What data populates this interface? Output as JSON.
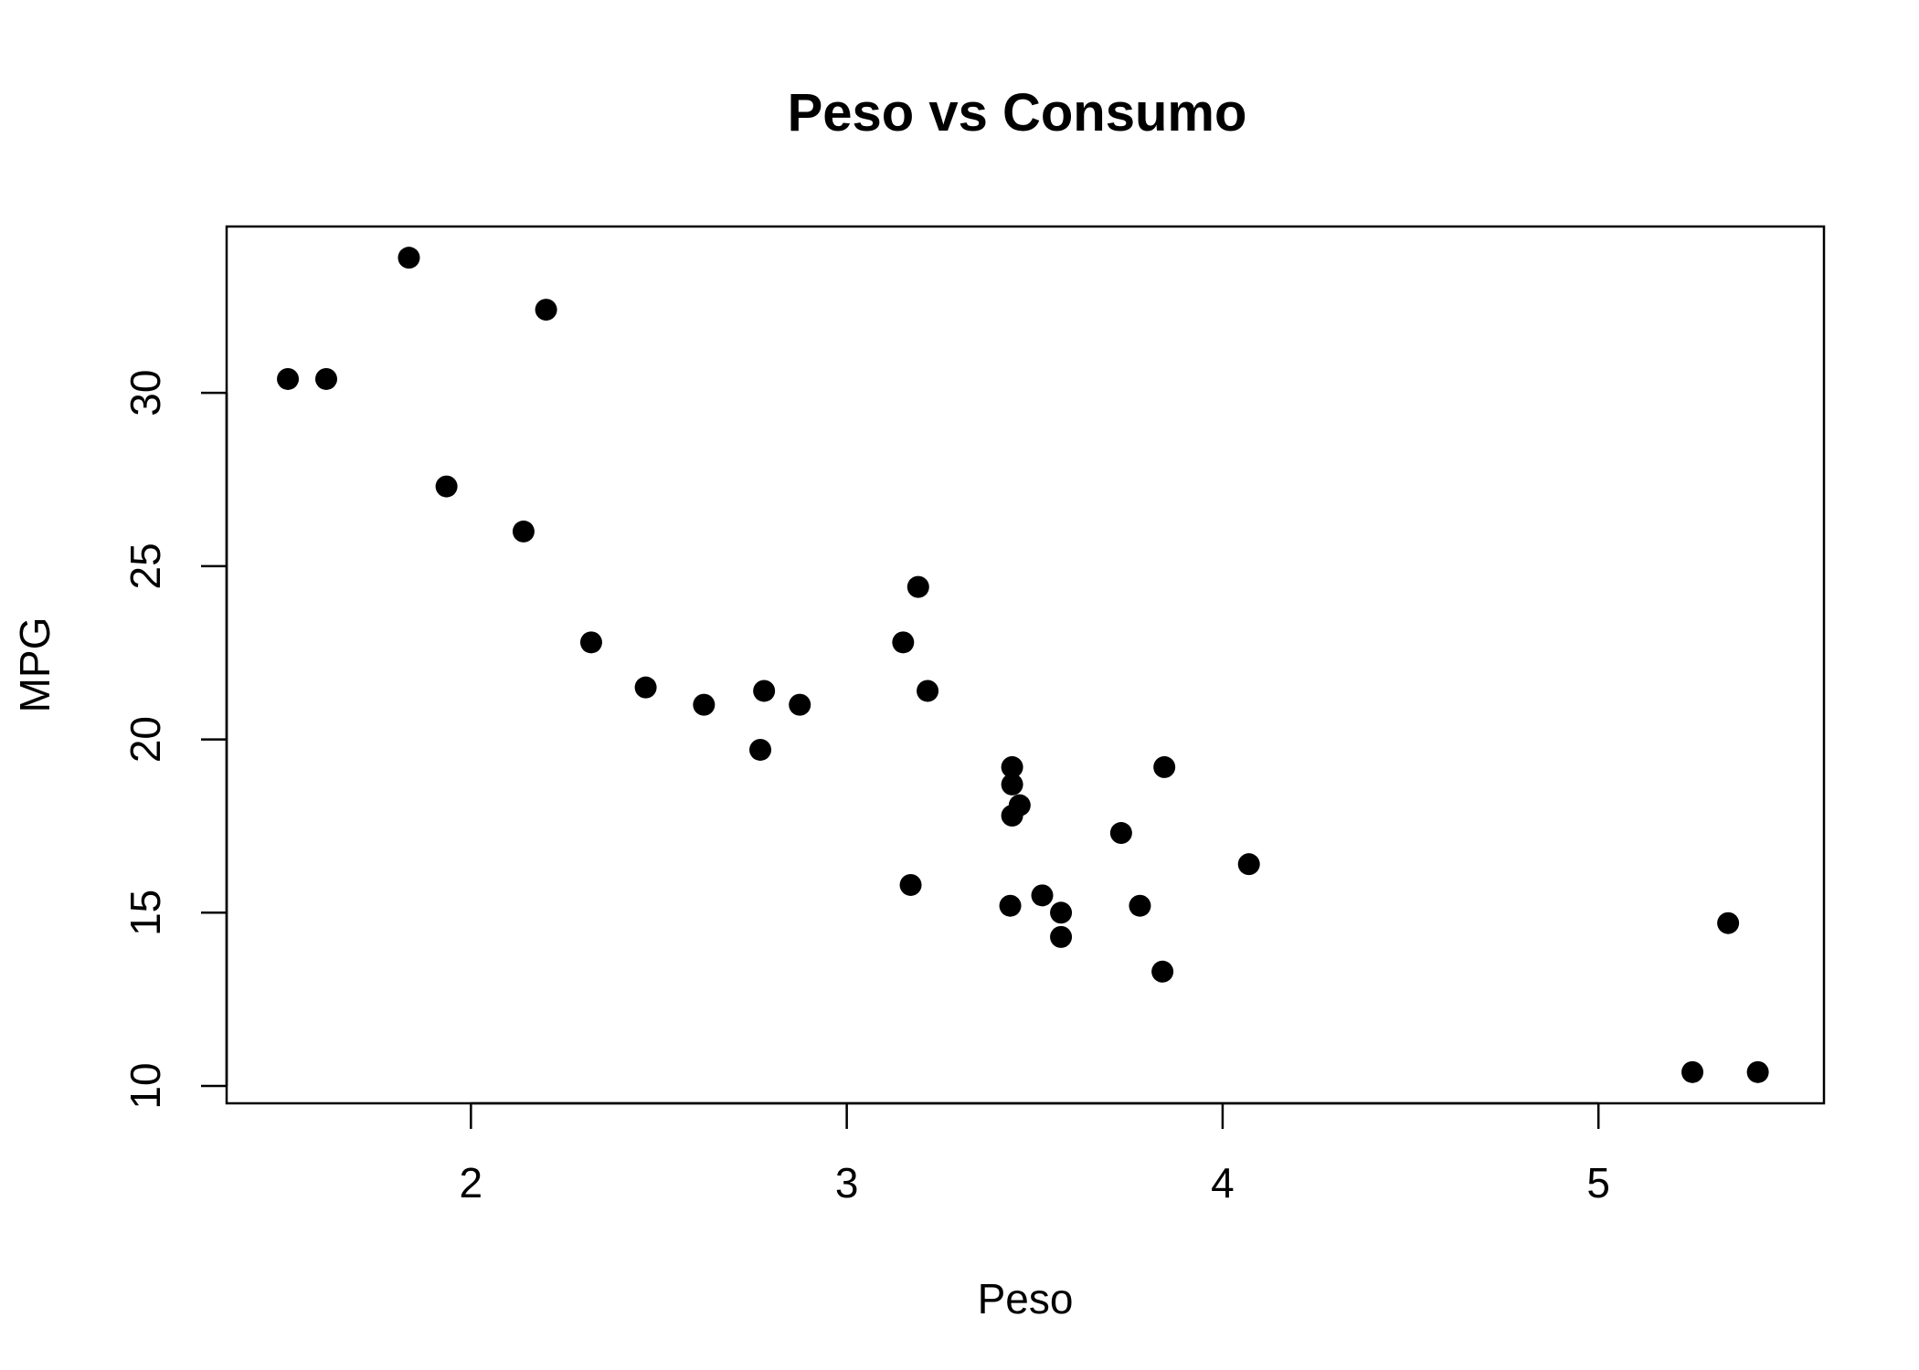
{
  "chart_data": {
    "type": "scatter",
    "title": "Peso vs Consumo",
    "xlabel": "Peso",
    "ylabel": "MPG",
    "xlim": [
      1.35,
      5.6
    ],
    "ylim": [
      9.5,
      34.8
    ],
    "xticks": [
      2,
      3,
      4,
      5
    ],
    "yticks": [
      10,
      15,
      20,
      25,
      30
    ],
    "grid": false,
    "legend": "none",
    "point_color": "#000000",
    "series": [
      {
        "x": [
          2.62,
          2.875,
          2.32,
          3.215,
          3.44,
          3.46,
          3.57,
          3.19,
          3.15,
          3.44,
          3.44,
          4.07,
          3.73,
          3.78,
          5.25,
          5.424,
          5.345,
          2.2,
          1.615,
          1.835,
          2.465,
          3.52,
          3.435,
          3.84,
          3.845,
          1.935,
          2.14,
          1.513,
          3.17,
          2.77,
          3.57,
          2.78
        ],
        "y": [
          21.0,
          21.0,
          22.8,
          21.4,
          18.7,
          18.1,
          14.3,
          24.4,
          22.8,
          19.2,
          17.8,
          16.4,
          17.3,
          15.2,
          10.4,
          10.4,
          14.7,
          32.4,
          30.4,
          33.9,
          21.5,
          15.5,
          15.2,
          13.3,
          19.2,
          27.3,
          26.0,
          30.4,
          15.8,
          19.7,
          15.0,
          21.4
        ]
      }
    ]
  }
}
